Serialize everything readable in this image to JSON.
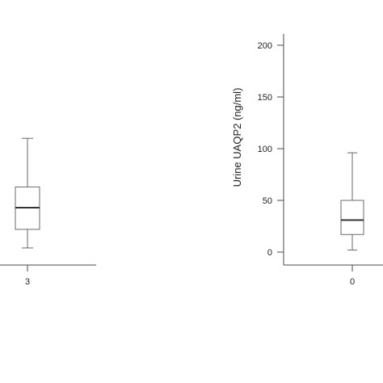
{
  "chart_data": [
    {
      "type": "box",
      "categories": [
        "3"
      ],
      "boxes": [
        {
          "category": "3",
          "min": 4,
          "q1": 22,
          "median": 43,
          "q3": 63,
          "max": 110
        }
      ],
      "title": "",
      "xlabel": "",
      "ylabel": "",
      "note": ""
    },
    {
      "type": "box",
      "categories": [
        "0"
      ],
      "boxes": [
        {
          "category": "0",
          "min": 2,
          "q1": 17,
          "median": 31,
          "q3": 50,
          "max": 96
        }
      ],
      "title": "",
      "xlabel": "",
      "ylabel": "Urine UAQP2 (ng/ml)",
      "ylim": [
        0,
        210
      ],
      "yticks": [
        "0",
        "50",
        "100",
        "150",
        "200"
      ],
      "ytick_values": [
        0,
        50,
        100,
        150,
        200
      ]
    }
  ]
}
